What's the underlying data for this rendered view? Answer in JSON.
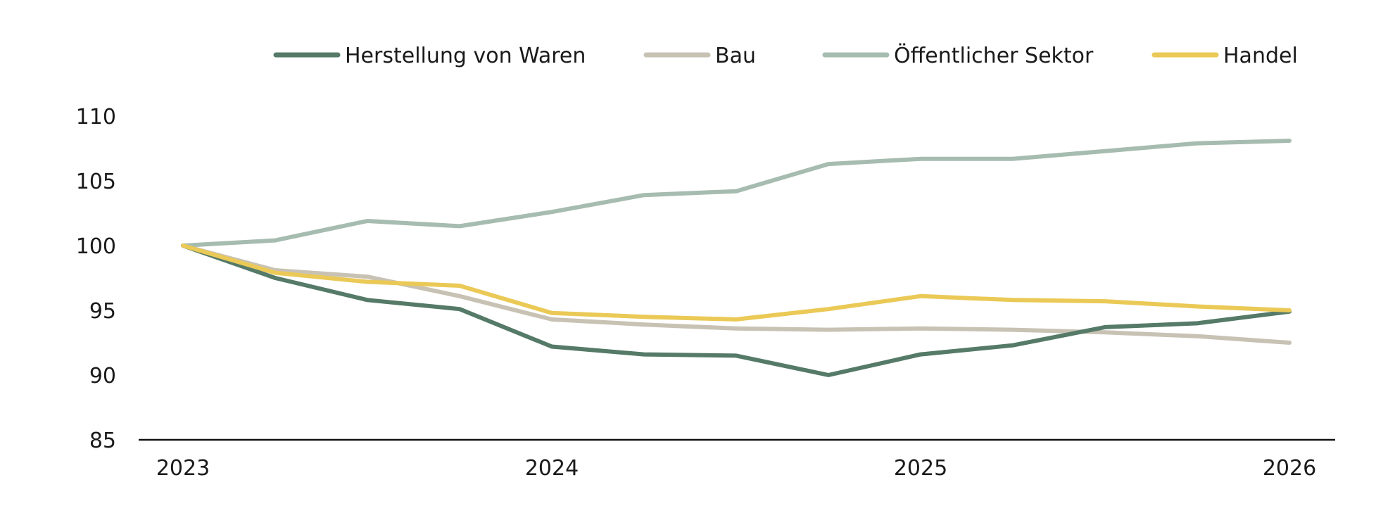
{
  "chart_data": {
    "type": "line",
    "title": "",
    "xlabel": "",
    "ylabel": "",
    "x_ticks": [
      "2023",
      "2024",
      "2025",
      "2026"
    ],
    "y_ticks": [
      85,
      90,
      95,
      100,
      105,
      110
    ],
    "ylim": [
      85,
      110
    ],
    "xlim": [
      2023,
      2026
    ],
    "x": [
      2023.0,
      2023.25,
      2023.5,
      2023.75,
      2024.0,
      2024.25,
      2024.5,
      2024.75,
      2025.0,
      2025.25,
      2025.5,
      2025.75,
      2026.0
    ],
    "legend_position": "top",
    "grid": false,
    "series": [
      {
        "name": "Herstellung von Waren",
        "color": "#557a68",
        "values": [
          100.0,
          97.5,
          95.8,
          95.1,
          92.2,
          91.6,
          91.5,
          90.0,
          91.6,
          92.3,
          93.7,
          94.0,
          94.9
        ]
      },
      {
        "name": "Bau",
        "color": "#c8c2b4",
        "values": [
          100.0,
          98.1,
          97.6,
          96.1,
          94.3,
          93.9,
          93.6,
          93.5,
          93.6,
          93.5,
          93.3,
          93.0,
          92.5
        ]
      },
      {
        "name": "Öffentlicher Sektor",
        "color": "#a7bcb0",
        "values": [
          100.0,
          100.4,
          101.9,
          101.5,
          102.6,
          103.9,
          104.2,
          106.3,
          106.7,
          106.7,
          107.3,
          107.9,
          108.1
        ]
      },
      {
        "name": "Handel",
        "color": "#eac956",
        "values": [
          100.0,
          97.9,
          97.2,
          96.9,
          94.8,
          94.5,
          94.3,
          95.1,
          96.1,
          95.8,
          95.7,
          95.3,
          95.0
        ]
      }
    ]
  }
}
